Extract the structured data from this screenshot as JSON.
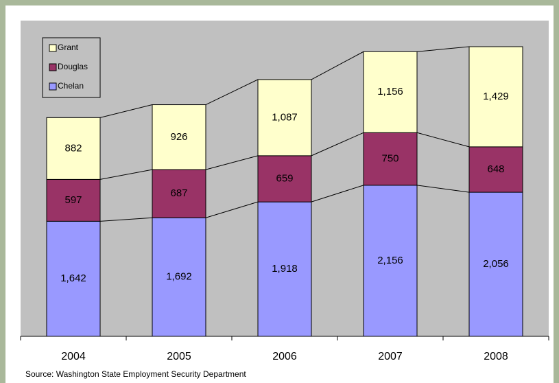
{
  "chart_data": {
    "type": "stacked_bar",
    "categories": [
      "2004",
      "2005",
      "2006",
      "2007",
      "2008"
    ],
    "series": [
      {
        "name": "Chelan",
        "color": "#9999ff",
        "values": [
          1642,
          1692,
          1918,
          2156,
          2056
        ],
        "value_labels": [
          "1,642",
          "1,692",
          "1,918",
          "2,156",
          "2,056"
        ]
      },
      {
        "name": "Douglas",
        "color": "#993366",
        "values": [
          597,
          687,
          659,
          750,
          648
        ]
      },
      {
        "name": "Grant",
        "color": "#ffffcc",
        "values": [
          882,
          926,
          1087,
          1156,
          1429
        ],
        "value_labels": [
          "882",
          "926",
          "1,087",
          "1,156",
          "1,429"
        ]
      }
    ],
    "source": "Source: Washington State Employment Security Department"
  }
}
